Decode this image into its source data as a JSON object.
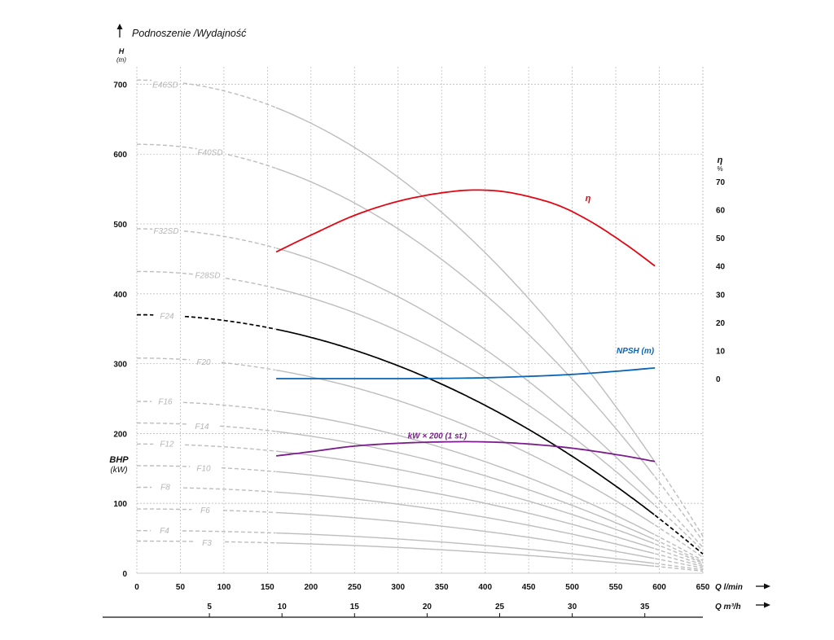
{
  "chart_data": {
    "type": "line",
    "title": "Podnoszenie /Wydajność",
    "y_axis": {
      "label": "H",
      "unit": "(m)",
      "ticks": [
        0,
        100,
        200,
        300,
        400,
        500,
        600,
        700
      ],
      "ylim": [
        0,
        725
      ]
    },
    "bhp_axis": {
      "label": "BHP",
      "unit": "(kW)"
    },
    "eta_axis": {
      "label": "η",
      "unit": "%",
      "ticks": [
        0,
        10,
        20,
        30,
        40,
        50,
        60,
        70
      ]
    },
    "x_axis": {
      "label": "Q l/min",
      "ticks": [
        0,
        50,
        100,
        150,
        200,
        250,
        300,
        350,
        400,
        450,
        500,
        550,
        600,
        650
      ],
      "xlim": [
        0,
        650
      ]
    },
    "x_axis2": {
      "label": "Q m³/h",
      "ticks": [
        5,
        10,
        15,
        20,
        25,
        30,
        35
      ]
    },
    "grid": true,
    "colors": {
      "pump_curve": "#bdbdbd",
      "highlight": "#000000",
      "eta": "#e30613",
      "npsh": "#0a64b4",
      "kw": "#7b1c8c",
      "grid": "#bdbdbd"
    },
    "pump_series": [
      {
        "name": "E46SD",
        "H0": 706,
        "Hend": 159,
        "dashed_until": 105
      },
      {
        "name": "F40SD",
        "H0": 614,
        "Hend": 138,
        "dashed_until": 105
      },
      {
        "name": "F32SD",
        "H0": 493,
        "Hend": 111,
        "dashed_until": 105
      },
      {
        "name": "F28SD",
        "H0": 432,
        "Hend": 97,
        "dashed_until": 105
      },
      {
        "name": "F24",
        "H0": 370,
        "Hend": 83,
        "dashed_until": 105,
        "highlight": true
      },
      {
        "name": "F20",
        "H0": 308,
        "Hend": 69,
        "dashed_until": 105
      },
      {
        "name": "F16",
        "H0": 246,
        "Hend": 55,
        "dashed_until": 105
      },
      {
        "name": "F14",
        "H0": 215,
        "Hend": 48,
        "dashed_until": 105
      },
      {
        "name": "F12",
        "H0": 185,
        "Hend": 42,
        "dashed_until": 105
      },
      {
        "name": "F10",
        "H0": 154,
        "Hend": 35,
        "dashed_until": 105
      },
      {
        "name": "F8",
        "H0": 123,
        "Hend": 28,
        "dashed_until": 105
      },
      {
        "name": "F6",
        "H0": 92,
        "Hend": 21,
        "dashed_until": 105
      },
      {
        "name": "F4",
        "H0": 61,
        "Hend": 14,
        "dashed_until": 105
      },
      {
        "name": "F3",
        "H0": 46,
        "Hend": 10,
        "dashed_until": 105
      }
    ],
    "eta_curve": {
      "name": "η",
      "x": [
        160,
        200,
        250,
        300,
        350,
        390,
        430,
        480,
        520,
        560,
        595
      ],
      "y": [
        45,
        51,
        58,
        63,
        66,
        67,
        66,
        62,
        56,
        48,
        40
      ]
    },
    "npsh_curve": {
      "name": "NPSH (m)",
      "x": [
        160,
        200,
        250,
        300,
        350,
        400,
        450,
        500,
        550,
        595
      ],
      "y": [
        0,
        0,
        0,
        0,
        0.1,
        0.3,
        0.8,
        1.5,
        2.6,
        3.8
      ]
    },
    "kw_curve": {
      "name": "kW × 200 (1 st.)",
      "x": [
        160,
        200,
        250,
        300,
        350,
        400,
        450,
        500,
        550,
        595
      ],
      "y": [
        168,
        174,
        182,
        186,
        188,
        188,
        185,
        179,
        170,
        160
      ]
    }
  }
}
